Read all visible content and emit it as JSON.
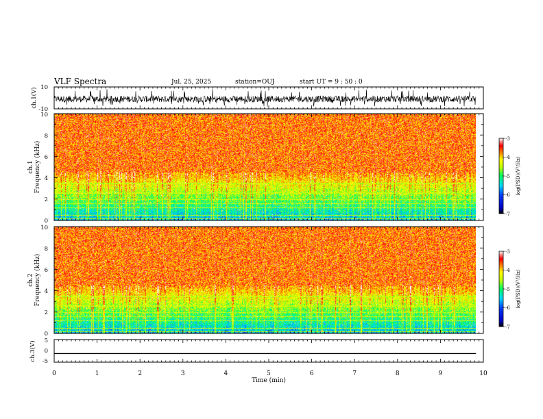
{
  "header": {
    "title": "VLF Spectra",
    "date": "Jul. 25, 2025",
    "station": "station=OUJ",
    "start": "start UT =  9 : 50 : 0"
  },
  "chart_data": [
    {
      "type": "line",
      "panel": "ch1-waveform",
      "ylabel": "ch.1(V)",
      "ylim": [
        -10,
        10
      ],
      "y_tick_labels": [
        "10",
        "-10"
      ],
      "xlim": [
        0,
        10
      ],
      "description_values": {
        "baseline_v": -1,
        "burst_amplitude_v": 8
      }
    },
    {
      "type": "heatmap",
      "panel": "ch1-spectrogram",
      "ylabel": "ch.1 Frequency (kHz)",
      "ylabel_top": "ch.1",
      "ylabel_bottom": "Frequency (kHz)",
      "ylim": [
        0,
        10
      ],
      "y_tick_labels": [
        "0",
        "2",
        "4",
        "6",
        "8",
        "10"
      ],
      "xlim": [
        0,
        10
      ],
      "data_end_min": 9.83,
      "colorbar": {
        "label": "log(PSD)(V²/Hz)",
        "range": [
          -7,
          -3
        ],
        "tick_labels": [
          "-3",
          "-4",
          "-5",
          "-6",
          "-7"
        ]
      }
    },
    {
      "type": "heatmap",
      "panel": "ch2-spectrogram",
      "ylabel": "ch.2 Frequency (kHz)",
      "ylabel_top": "ch.2",
      "ylabel_bottom": "Frequency (kHz)",
      "ylim": [
        0,
        10
      ],
      "y_tick_labels": [
        "0",
        "2",
        "4",
        "6",
        "8",
        "10"
      ],
      "xlim": [
        0,
        10
      ],
      "data_end_min": 9.83,
      "colorbar": {
        "label": "log(PSD)(V²/Hz)",
        "range": [
          -7,
          -3
        ],
        "tick_labels": [
          "-3",
          "-4",
          "-5",
          "-6",
          "-7"
        ]
      }
    },
    {
      "type": "line",
      "panel": "ch3-waveform",
      "ylabel": "ch.3(V)",
      "ylim": [
        -5,
        5
      ],
      "y_tick_labels": [
        "5",
        "0",
        "-5"
      ],
      "xlim": [
        0,
        10
      ],
      "x": [
        0,
        9.83
      ],
      "y": [
        -1.2,
        -1.2
      ]
    }
  ],
  "xaxis": {
    "label": "Time (min)",
    "range": [
      0,
      10
    ],
    "tick_labels": [
      "0",
      "1",
      "2",
      "3",
      "4",
      "5",
      "6",
      "7",
      "8",
      "9",
      "10"
    ]
  }
}
